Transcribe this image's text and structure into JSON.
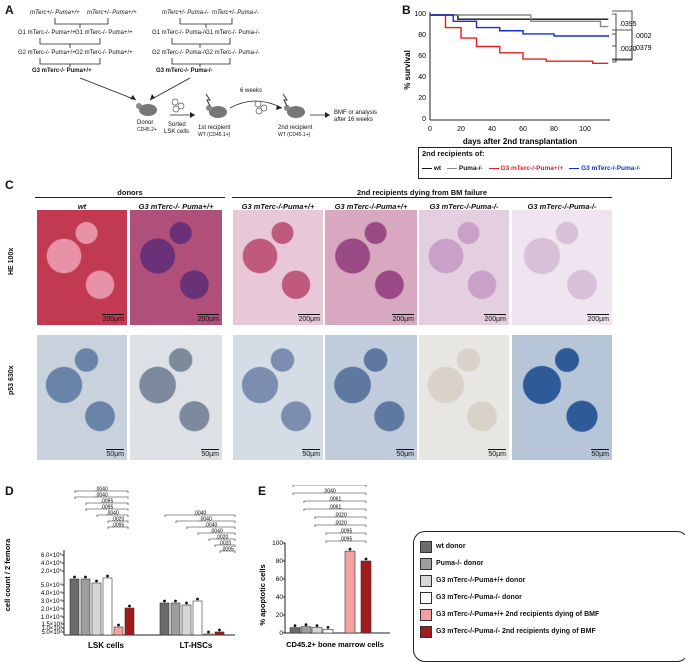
{
  "panels": {
    "a": "A",
    "b": "B",
    "c": "C",
    "d": "D",
    "e": "E"
  },
  "schemeA": {
    "p1_left": "mTerc+/- Puma+/+",
    "p1_right": "mTerc+/- Puma+/+",
    "g1a": "G1 mTerc-/- Puma+/+",
    "g1b": "G1 mTerc-/- Puma+/+",
    "g2a": "G2 mTerc-/- Puma+/+",
    "g2b": "G2 mTerc-/- Puma+/+",
    "g3": "G3 mTerc-/- Puma+/+",
    "p2_left": "mTerc+/- Puma-/-",
    "p2_right": "mTerc+/- Puma-/-",
    "h1a": "G1 mTerc-/- Puma-/-",
    "h1b": "G1 mTerc-/- Puma-/-",
    "h2a": "G2 mTerc-/- Puma-/-",
    "h2b": "G2 mTerc-/- Puma-/-",
    "h3": "G3 mTerc-/- Puma-/-",
    "donor": "Donor",
    "donor_cd": "CD45.2+",
    "sorted": "Sorted",
    "lsk": "LSK cells",
    "weeks": "6 weeks",
    "r1": "1st recipient",
    "r1cd": "WT (CD45.1+)",
    "r2": "2nd recipient",
    "r2cd": "WT (CD45.1+)",
    "bmf": "BMF or analysis",
    "bmf2": "after 16 weeks"
  },
  "survival": {
    "ylabel": "% survival",
    "xlabel": "days after 2nd transplantation",
    "legend_title": "2nd recipients of:",
    "legend": [
      "wt",
      "Puma-/-",
      "G3 mTerc-/-Puma+/+",
      "G3 mTerc-/-Puma-/-"
    ],
    "pvals": [
      ".0395",
      ".0002",
      ".0020",
      ".0379"
    ]
  },
  "panelC": {
    "group_left": "donors",
    "group_right": "2nd recipients dying from BM failure",
    "cols": [
      "wt",
      "G3 mTerc-/- Puma+/+",
      "G3 mTerc-/-Puma+/+",
      "G3 mTerc-/-Puma+/+",
      "G3 mTerc-/-Puma-/-",
      "G3 mTerc-/-Puma-/-"
    ],
    "row1": "HE 100x",
    "row2": "p53 630x",
    "scale_he": "200µm",
    "scale_p53": "50µm"
  },
  "panelD": {
    "ylabel": "cell count / 2 femora",
    "categories": [
      "LSK cells",
      "LT-HSCs"
    ],
    "yticks": [
      "6.0×10⁵",
      "4.0×10⁵",
      "2.0×10⁵",
      "5.0×10⁴",
      "4.0×10⁴",
      "3.0×10⁴",
      "2.0×10⁴",
      "1.0×10⁴",
      "1.5×10³",
      "1.0×10³",
      "5.0×10²"
    ],
    "pvals": [
      ".0040",
      ".0040",
      ".0095",
      ".0095",
      ".0040",
      ".0020",
      ".0095",
      ".0040",
      ".0040",
      ".0040",
      ".0040",
      ".0020",
      ".0020",
      ".0095"
    ]
  },
  "panelE": {
    "ylabel": "% apoptotic cells",
    "xlabel": "CD45.2+ bone marrow cells",
    "yticks": [
      "100",
      "80",
      "60",
      "40",
      "20",
      "0"
    ],
    "pvals": [
      ".0040",
      ".0040",
      ".0061",
      ".0061",
      ".0020",
      ".0020",
      ".0095",
      ".0095"
    ]
  },
  "legendDE": [
    {
      "label": "wt donor",
      "color": "#6b6b6b"
    },
    {
      "label": "Puma-/- donor",
      "color": "#9e9e9e"
    },
    {
      "label": "G3 mTerc-/-Puma+/+ donor",
      "color": "#d6d6d6"
    },
    {
      "label": "G3 mTerc-/-Puma-/- donor",
      "color": "#ffffff"
    },
    {
      "label": "G3 mTerc-/-Puma+/+ 2nd recipients dying of BMF",
      "color": "#f4a0a0"
    },
    {
      "label": "G3 mTerc-/-Puma-/- 2nd recipients dying of BMF",
      "color": "#a31a1a"
    }
  ],
  "chart_data": [
    {
      "type": "line",
      "title": "",
      "xlabel": "days after 2nd transplantation",
      "ylabel": "% survival",
      "ylim": [
        0,
        100
      ],
      "series": [
        {
          "name": "wt",
          "x": [
            0,
            18,
            115
          ],
          "y": [
            100,
            96,
            96
          ]
        },
        {
          "name": "Puma-/-",
          "x": [
            0,
            65,
            110,
            115
          ],
          "y": [
            100,
            94,
            89,
            89
          ]
        },
        {
          "name": "G3 mTerc-/-Puma+/+",
          "x": [
            0,
            10,
            20,
            30,
            45,
            60,
            75,
            90,
            105,
            115
          ],
          "y": [
            100,
            88,
            78,
            70,
            64,
            58,
            56,
            56,
            54,
            54
          ]
        },
        {
          "name": "G3 mTerc-/-Puma-/-",
          "x": [
            0,
            15,
            30,
            45,
            60,
            80,
            115
          ],
          "y": [
            100,
            94,
            88,
            85,
            82,
            80,
            79
          ]
        }
      ]
    },
    {
      "type": "bar",
      "categories": [
        "LSK cells",
        "LT-HSCs"
      ],
      "ylabel": "cell count / 2 femora",
      "series": [
        {
          "name": "wt donor",
          "values": [
            250000,
            20000
          ]
        },
        {
          "name": "Puma-/- donor",
          "values": [
            250000,
            20000
          ]
        },
        {
          "name": "G3 mTerc-/-Puma+/+ donor",
          "values": [
            200000,
            18000
          ]
        },
        {
          "name": "G3 mTerc-/-Puma-/- donor",
          "values": [
            300000,
            22000
          ]
        },
        {
          "name": "G3 mTerc-/-Puma+/+ 2nd recipients dying of BMF",
          "values": [
            800,
            300
          ]
        },
        {
          "name": "G3 mTerc-/-Puma-/- 2nd recipients dying of BMF",
          "values": [
            12000,
            600
          ]
        }
      ]
    },
    {
      "type": "bar",
      "categories": [
        "CD45.2+ bone marrow cells"
      ],
      "ylabel": "% apoptotic cells",
      "ylim": [
        0,
        100
      ],
      "series": [
        {
          "name": "wt donor",
          "values": [
            6
          ]
        },
        {
          "name": "Puma-/- donor",
          "values": [
            7
          ]
        },
        {
          "name": "G3 mTerc-/-Puma+/+ donor",
          "values": [
            6
          ]
        },
        {
          "name": "G3 mTerc-/-Puma-/- donor",
          "values": [
            4
          ]
        },
        {
          "name": "G3 mTerc-/-Puma+/+ 2nd recipients dying of BMF",
          "values": [
            91
          ]
        },
        {
          "name": "G3 mTerc-/-Puma-/- 2nd recipients dying of BMF",
          "values": [
            80
          ]
        }
      ]
    }
  ]
}
